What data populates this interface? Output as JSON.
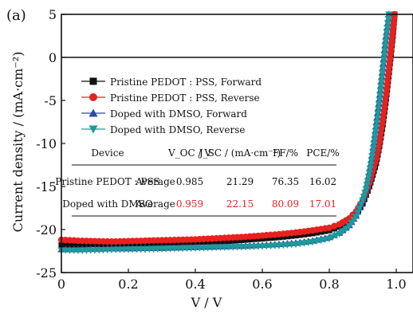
{
  "chart_data": {
    "type": "line",
    "panel_label": "(a)",
    "xlabel": "V / V",
    "ylabel": "Current density / (mA·cm⁻²)",
    "xlim": [
      0,
      1.05
    ],
    "ylim": [
      -25,
      5
    ],
    "xticks": [
      "0",
      "0.2",
      "0.4",
      "0.6",
      "0.8",
      "1.0"
    ],
    "xtick_values": [
      0,
      0.2,
      0.4,
      0.6,
      0.8,
      1.0
    ],
    "yticks": [
      "5",
      "0",
      "-5",
      "-10",
      "-15",
      "-20",
      "-25"
    ],
    "ytick_values": [
      5,
      0,
      -5,
      -10,
      -15,
      -20,
      -25
    ],
    "zero_line": true,
    "legend_placement": "upper-left",
    "series": [
      {
        "name": "Pristine PEDOT : PSS, Forward",
        "color": "#111111",
        "marker": "square",
        "points": [
          [
            0,
            -21.8
          ],
          [
            0.05,
            -21.75
          ],
          [
            0.1,
            -21.7
          ],
          [
            0.15,
            -21.7
          ],
          [
            0.2,
            -21.65
          ],
          [
            0.25,
            -21.6
          ],
          [
            0.3,
            -21.55
          ],
          [
            0.35,
            -21.5
          ],
          [
            0.4,
            -21.45
          ],
          [
            0.45,
            -21.4
          ],
          [
            0.5,
            -21.35
          ],
          [
            0.55,
            -21.2
          ],
          [
            0.6,
            -21.05
          ],
          [
            0.65,
            -20.9
          ],
          [
            0.7,
            -20.7
          ],
          [
            0.75,
            -20.45
          ],
          [
            0.8,
            -20.1
          ],
          [
            0.83,
            -19.7
          ],
          [
            0.86,
            -19.0
          ],
          [
            0.88,
            -18.2
          ],
          [
            0.9,
            -17.0
          ],
          [
            0.92,
            -15.0
          ],
          [
            0.94,
            -12.3
          ],
          [
            0.95,
            -10.3
          ],
          [
            0.96,
            -7.8
          ],
          [
            0.97,
            -4.8
          ],
          [
            0.98,
            -1.2
          ],
          [
            0.99,
            2.5
          ],
          [
            0.995,
            5.0
          ]
        ]
      },
      {
        "name": "Pristine PEDOT : PSS, Reverse",
        "color": "#e8211f",
        "marker": "circle",
        "points": [
          [
            0,
            -21.2
          ],
          [
            0.05,
            -21.3
          ],
          [
            0.1,
            -21.35
          ],
          [
            0.15,
            -21.4
          ],
          [
            0.2,
            -21.35
          ],
          [
            0.25,
            -21.3
          ],
          [
            0.3,
            -21.25
          ],
          [
            0.35,
            -21.2
          ],
          [
            0.4,
            -21.15
          ],
          [
            0.45,
            -21.05
          ],
          [
            0.5,
            -20.95
          ],
          [
            0.55,
            -20.85
          ],
          [
            0.6,
            -20.7
          ],
          [
            0.65,
            -20.55
          ],
          [
            0.7,
            -20.35
          ],
          [
            0.75,
            -20.1
          ],
          [
            0.8,
            -19.8
          ],
          [
            0.83,
            -19.4
          ],
          [
            0.86,
            -18.7
          ],
          [
            0.88,
            -17.9
          ],
          [
            0.9,
            -16.6
          ],
          [
            0.92,
            -14.6
          ],
          [
            0.94,
            -11.8
          ],
          [
            0.95,
            -9.8
          ],
          [
            0.96,
            -7.2
          ],
          [
            0.97,
            -4.2
          ],
          [
            0.98,
            -0.6
          ],
          [
            0.99,
            3.0
          ],
          [
            0.995,
            5.0
          ]
        ]
      },
      {
        "name": "Doped with DMSO, Forward",
        "color": "#2f48a8",
        "marker": "triangle-up",
        "points": [
          [
            0,
            -22.3
          ],
          [
            0.05,
            -22.3
          ],
          [
            0.1,
            -22.25
          ],
          [
            0.15,
            -22.2
          ],
          [
            0.2,
            -22.2
          ],
          [
            0.25,
            -22.15
          ],
          [
            0.3,
            -22.15
          ],
          [
            0.35,
            -22.1
          ],
          [
            0.4,
            -22.05
          ],
          [
            0.45,
            -22.0
          ],
          [
            0.5,
            -21.95
          ],
          [
            0.55,
            -21.9
          ],
          [
            0.6,
            -21.8
          ],
          [
            0.65,
            -21.7
          ],
          [
            0.7,
            -21.55
          ],
          [
            0.75,
            -21.3
          ],
          [
            0.8,
            -20.9
          ],
          [
            0.83,
            -20.4
          ],
          [
            0.86,
            -19.5
          ],
          [
            0.88,
            -18.4
          ],
          [
            0.9,
            -16.5
          ],
          [
            0.91,
            -15.2
          ],
          [
            0.92,
            -13.3
          ],
          [
            0.93,
            -10.9
          ],
          [
            0.94,
            -8.0
          ],
          [
            0.95,
            -4.8
          ],
          [
            0.96,
            -1.2
          ],
          [
            0.97,
            2.5
          ],
          [
            0.978,
            5.0
          ]
        ]
      },
      {
        "name": "Doped with DMSO, Reverse",
        "color": "#1f9a9a",
        "marker": "triangle-down",
        "points": [
          [
            0,
            -22.4
          ],
          [
            0.05,
            -22.45
          ],
          [
            0.1,
            -22.4
          ],
          [
            0.15,
            -22.35
          ],
          [
            0.2,
            -22.3
          ],
          [
            0.25,
            -22.3
          ],
          [
            0.3,
            -22.25
          ],
          [
            0.35,
            -22.2
          ],
          [
            0.4,
            -22.15
          ],
          [
            0.45,
            -22.1
          ],
          [
            0.5,
            -22.05
          ],
          [
            0.55,
            -22.0
          ],
          [
            0.6,
            -21.95
          ],
          [
            0.65,
            -21.85
          ],
          [
            0.7,
            -21.7
          ],
          [
            0.75,
            -21.45
          ],
          [
            0.8,
            -21.05
          ],
          [
            0.83,
            -20.5
          ],
          [
            0.86,
            -19.6
          ],
          [
            0.88,
            -18.5
          ],
          [
            0.9,
            -16.6
          ],
          [
            0.91,
            -15.3
          ],
          [
            0.92,
            -13.4
          ],
          [
            0.93,
            -11.0
          ],
          [
            0.94,
            -8.1
          ],
          [
            0.95,
            -4.9
          ],
          [
            0.96,
            -1.3
          ],
          [
            0.97,
            2.4
          ],
          [
            0.978,
            5.0
          ]
        ]
      }
    ],
    "table": {
      "headers": [
        "Device",
        "",
        "V_OC / V",
        "J_SC / (mA·cm⁻²)",
        "FF/%",
        "PCE/%"
      ],
      "rows": [
        {
          "device": "Pristine PEDOT : PSS",
          "stat": "Average",
          "voc": "0.985",
          "jsc": "21.29",
          "ff": "76.35",
          "pce": "16.02",
          "color": "#111111"
        },
        {
          "device": "Doped with DMSO",
          "stat": "Average",
          "voc": "0.959",
          "jsc": "22.15",
          "ff": "80.09",
          "pce": "17.01",
          "color": "#e8211f"
        }
      ]
    }
  }
}
